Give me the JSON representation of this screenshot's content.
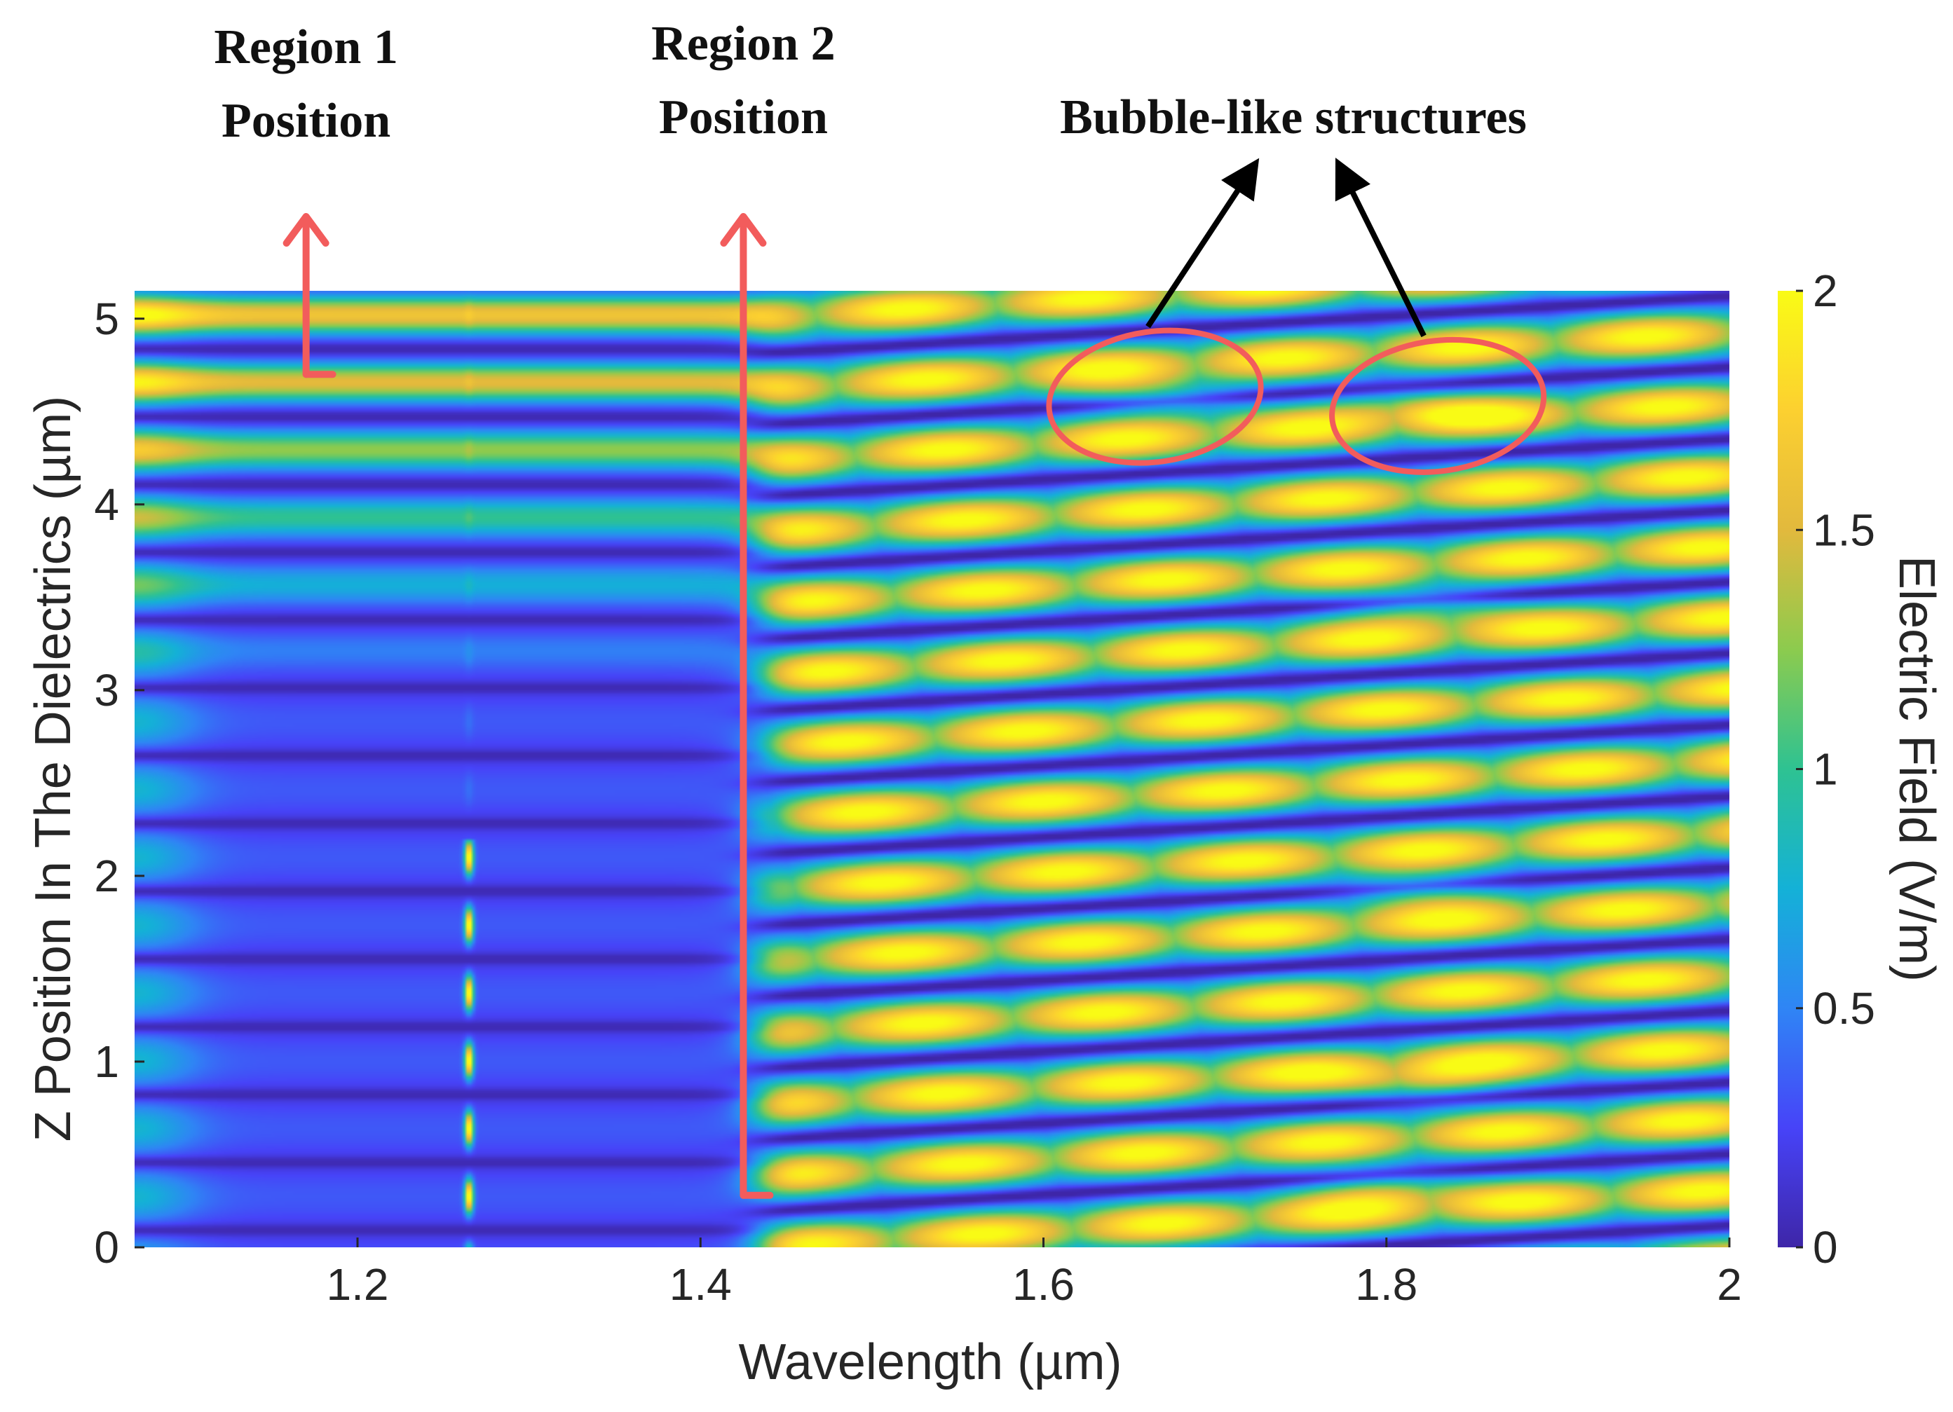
{
  "chart_data": {
    "type": "heatmap",
    "xlabel": "Wavelength (µm)",
    "ylabel": "Z Position In The Dielectrics (µm)",
    "colorbar_label": "Electric Field (V/m)",
    "xlim": [
      1.07,
      2.0
    ],
    "ylim": [
      0,
      5.15
    ],
    "clim": [
      0,
      2
    ],
    "xticks": [
      1.2,
      1.4,
      1.6,
      1.8,
      2
    ],
    "xtick_labels": [
      "1.2",
      "1.4",
      "1.6",
      "1.8",
      "2"
    ],
    "yticks": [
      0,
      1,
      2,
      3,
      4,
      5
    ],
    "ytick_labels": [
      "0",
      "1",
      "2",
      "3",
      "4",
      "5"
    ],
    "cticks": [
      0,
      0.5,
      1,
      1.5,
      2
    ],
    "ctick_labels": [
      "0",
      "0.5",
      "1",
      "1.5",
      "2"
    ],
    "colormap": [
      "#3e26a8",
      "#4743f8",
      "#2f85f5",
      "#14b1d7",
      "#2ec292",
      "#8ccb4e",
      "#e2b93d",
      "#fcd030",
      "#f9fb15"
    ],
    "grid": false,
    "field_features": {
      "resonance_line_x": 1.265,
      "transition_x": 1.435,
      "region1_field_bands_z": [
        5.02,
        4.72,
        4.35
      ],
      "bubble_x": [
        1.46,
        1.56,
        1.66,
        1.76,
        1.86,
        1.97
      ],
      "hot_spots": [
        {
          "x": 1.665,
          "z": 4.58
        },
        {
          "x": 1.82,
          "z": 4.53
        },
        {
          "x": 1.82,
          "z": 3.45
        },
        {
          "x": 1.8,
          "z": 0.32
        },
        {
          "x": 1.82,
          "z": 0.88
        },
        {
          "x": 1.82,
          "z": 1.92
        }
      ]
    },
    "annotations": [
      {
        "text_lines": [
          "Region 1",
          "Position"
        ],
        "x": 1.17,
        "z_tip": 5.55,
        "z_base": 4.7
      },
      {
        "text_lines": [
          "Region 2",
          "Position"
        ],
        "x": 1.425,
        "z_tip": 5.55,
        "z_base": 0.28
      },
      {
        "text": "Bubble-like structures",
        "circled": [
          {
            "x": 1.665,
            "z": 4.58
          },
          {
            "x": 1.83,
            "z": 4.53
          }
        ]
      }
    ],
    "annotation_color": "#f25c5c"
  }
}
